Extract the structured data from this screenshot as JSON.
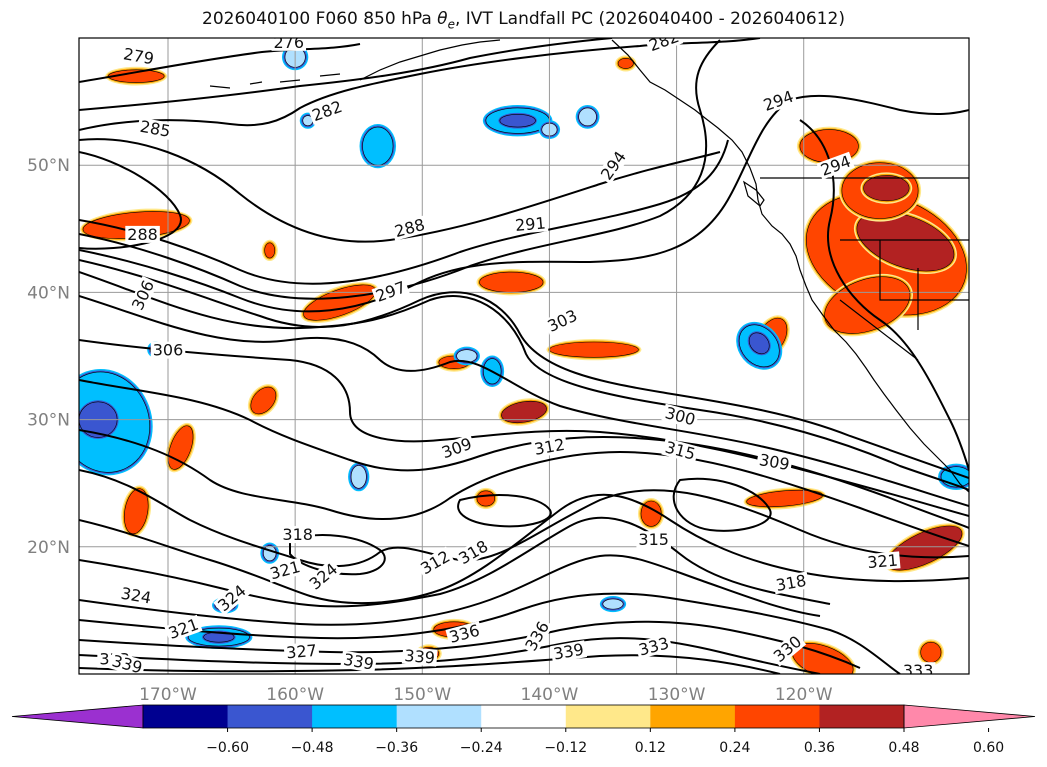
{
  "title": {
    "prefix": "2026040100 F060 850 hPa ",
    "theta": "θ",
    "theta_sub": "e",
    "suffix": ", IVT Landfall PC (2026040400 - 2026040612)"
  },
  "axes": {
    "lon_ticks": [
      "170°W",
      "160°W",
      "150°W",
      "140°W",
      "130°W",
      "120°W"
    ],
    "lat_ticks": [
      "50°N",
      "40°N",
      "30°N",
      "20°N"
    ],
    "lon_range": [
      -177,
      -107
    ],
    "lat_range": [
      10,
      60
    ],
    "grid": true,
    "projection": "PlateCarree"
  },
  "colorbar": {
    "tick_labels": [
      "−0.60",
      "−0.48",
      "−0.36",
      "−0.24",
      "−0.12",
      "0.12",
      "0.24",
      "0.36",
      "0.48",
      "0.60"
    ],
    "bounds": [
      -0.6,
      -0.48,
      -0.36,
      -0.24,
      -0.12,
      0.12,
      0.24,
      0.36,
      0.48,
      0.6
    ],
    "colors": [
      "#9b30d0",
      "#000090",
      "#3a56d0",
      "#00bfff",
      "#b0e0ff",
      "#ffffff",
      "#ffe88a",
      "#ffa500",
      "#ff4500",
      "#b22222",
      "#ff88aa"
    ],
    "extend": "both"
  },
  "contour_labels": [
    {
      "value": "279",
      "lon": -172.3,
      "lat": 58.6,
      "angle": 10
    },
    {
      "value": "276",
      "lon": -160.5,
      "lat": 59.7,
      "angle": 0
    },
    {
      "value": "282",
      "lon": -157.5,
      "lat": 54.3,
      "angle": -20
    },
    {
      "value": "285",
      "lon": -171.0,
      "lat": 52.9,
      "angle": 10
    },
    {
      "value": "288",
      "lon": -172.0,
      "lat": 44.6,
      "angle": 0
    },
    {
      "value": "288",
      "lon": -151.0,
      "lat": 45.1,
      "angle": -15
    },
    {
      "value": "291",
      "lon": -141.5,
      "lat": 45.4,
      "angle": -5
    },
    {
      "value": "297",
      "lon": -152.5,
      "lat": 40.1,
      "angle": -20
    },
    {
      "value": "303",
      "lon": -139.0,
      "lat": 37.8,
      "angle": -25
    },
    {
      "value": "294",
      "lon": -135.0,
      "lat": 50.0,
      "angle": -55
    },
    {
      "value": "294",
      "lon": -122.0,
      "lat": 55.1,
      "angle": -20
    },
    {
      "value": "294",
      "lon": -117.5,
      "lat": 50.0,
      "angle": -20
    },
    {
      "value": "306",
      "lon": -172.0,
      "lat": 39.8,
      "angle": -65
    },
    {
      "value": "306",
      "lon": -170.0,
      "lat": 35.5,
      "angle": 0
    },
    {
      "value": "300",
      "lon": -129.7,
      "lat": 30.3,
      "angle": 15
    },
    {
      "value": "309",
      "lon": -147.3,
      "lat": 27.8,
      "angle": -20
    },
    {
      "value": "312",
      "lon": -140.0,
      "lat": 27.9,
      "angle": -10
    },
    {
      "value": "315",
      "lon": -129.7,
      "lat": 27.6,
      "angle": 15
    },
    {
      "value": "309",
      "lon": -122.3,
      "lat": 26.7,
      "angle": 10
    },
    {
      "value": "318",
      "lon": -159.8,
      "lat": 21.0,
      "angle": 0
    },
    {
      "value": "315",
      "lon": -131.8,
      "lat": 20.6,
      "angle": 0
    },
    {
      "value": "321",
      "lon": -160.8,
      "lat": 18.2,
      "angle": -15
    },
    {
      "value": "324",
      "lon": -157.8,
      "lat": 17.7,
      "angle": -40
    },
    {
      "value": "324",
      "lon": -172.5,
      "lat": 16.2,
      "angle": 10
    },
    {
      "value": "324",
      "lon": -165.0,
      "lat": 16.0,
      "angle": -40
    },
    {
      "value": "312",
      "lon": -149.0,
      "lat": 18.8,
      "angle": -30
    },
    {
      "value": "318",
      "lon": -146.0,
      "lat": 19.6,
      "angle": -30
    },
    {
      "value": "318",
      "lon": -121.0,
      "lat": 17.2,
      "angle": -10
    },
    {
      "value": "321",
      "lon": -113.8,
      "lat": 18.9,
      "angle": -5
    },
    {
      "value": "321",
      "lon": -168.8,
      "lat": 13.6,
      "angle": -20
    },
    {
      "value": "336",
      "lon": -146.7,
      "lat": 13.2,
      "angle": -15
    },
    {
      "value": "336",
      "lon": -141.0,
      "lat": 13.0,
      "angle": -60
    },
    {
      "value": "333",
      "lon": -131.8,
      "lat": 12.2,
      "angle": -15
    },
    {
      "value": "333",
      "lon": -174.2,
      "lat": 11.2,
      "angle": 0
    },
    {
      "value": "327",
      "lon": -159.5,
      "lat": 11.8,
      "angle": -5
    },
    {
      "value": "330",
      "lon": -121.3,
      "lat": 12.0,
      "angle": -40
    },
    {
      "value": "339",
      "lon": -173.2,
      "lat": 10.8,
      "angle": 15
    },
    {
      "value": "339",
      "lon": -155.0,
      "lat": 11.0,
      "angle": 10
    },
    {
      "value": "339",
      "lon": -150.2,
      "lat": 11.4,
      "angle": 5
    },
    {
      "value": "339",
      "lon": -138.5,
      "lat": 11.8,
      "angle": -10
    },
    {
      "value": "333",
      "lon": -111.0,
      "lat": 10.3,
      "angle": 0
    },
    {
      "value": "282",
      "lon": -131.0,
      "lat": 59.8,
      "angle": -20
    }
  ],
  "shaded_regions": [
    {
      "level": 0.36,
      "lon": -113.5,
      "lat": 43.0,
      "rx": 6.5,
      "ry": 4.5,
      "angle": 20
    },
    {
      "level": 0.48,
      "lon": -112.0,
      "lat": 44.0,
      "rx": 4.0,
      "ry": 2.0,
      "angle": 20
    },
    {
      "level": 0.36,
      "lon": -114.0,
      "lat": 48.0,
      "rx": 3.0,
      "ry": 2.2,
      "angle": 0
    },
    {
      "level": 0.48,
      "lon": -113.5,
      "lat": 48.2,
      "rx": 1.8,
      "ry": 1.0,
      "angle": 0
    },
    {
      "level": 0.36,
      "lon": -115.0,
      "lat": 39.0,
      "rx": 3.5,
      "ry": 2.0,
      "angle": -20
    },
    {
      "level": 0.36,
      "lon": -122.5,
      "lat": 36.5,
      "rx": 1.0,
      "ry": 1.6,
      "angle": 30
    },
    {
      "level": 0.36,
      "lon": -118.0,
      "lat": 51.5,
      "rx": 2.3,
      "ry": 1.3,
      "angle": 0
    },
    {
      "level": 0.36,
      "lon": -172.5,
      "lat": 45.3,
      "rx": 4.2,
      "ry": 1.0,
      "angle": -5
    },
    {
      "level": 0.36,
      "lon": -172.5,
      "lat": 57.0,
      "rx": 2.2,
      "ry": 0.5,
      "angle": 0
    },
    {
      "level": 0.36,
      "lon": -156.5,
      "lat": 39.2,
      "rx": 3.0,
      "ry": 1.0,
      "angle": -20
    },
    {
      "level": 0.36,
      "lon": -143.0,
      "lat": 40.8,
      "rx": 2.5,
      "ry": 0.8,
      "angle": 0
    },
    {
      "level": 0.36,
      "lon": -136.5,
      "lat": 35.5,
      "rx": 3.5,
      "ry": 0.6,
      "angle": 0
    },
    {
      "level": 0.48,
      "lon": -142.0,
      "lat": 30.6,
      "rx": 1.8,
      "ry": 0.8,
      "angle": -10
    },
    {
      "level": 0.36,
      "lon": -147.5,
      "lat": 34.5,
      "rx": 1.2,
      "ry": 0.5,
      "angle": 0
    },
    {
      "level": 0.36,
      "lon": -162.0,
      "lat": 43.3,
      "rx": 0.4,
      "ry": 0.6,
      "angle": 0
    },
    {
      "level": 0.36,
      "lon": -172.5,
      "lat": 22.8,
      "rx": 0.9,
      "ry": 1.8,
      "angle": 10
    },
    {
      "level": 0.36,
      "lon": -169.0,
      "lat": 27.8,
      "rx": 0.8,
      "ry": 1.8,
      "angle": 20
    },
    {
      "level": 0.36,
      "lon": -162.5,
      "lat": 31.5,
      "rx": 0.8,
      "ry": 1.2,
      "angle": 40
    },
    {
      "level": 0.36,
      "lon": -145.0,
      "lat": 23.8,
      "rx": 0.7,
      "ry": 0.6,
      "angle": 0
    },
    {
      "level": 0.36,
      "lon": -132.0,
      "lat": 22.6,
      "rx": 0.8,
      "ry": 1.0,
      "angle": 0
    },
    {
      "level": 0.36,
      "lon": -121.5,
      "lat": 23.8,
      "rx": 3.0,
      "ry": 0.6,
      "angle": -5
    },
    {
      "level": 0.48,
      "lon": -110.5,
      "lat": 19.9,
      "rx": 3.2,
      "ry": 1.2,
      "angle": -25
    },
    {
      "level": 0.36,
      "lon": -147.5,
      "lat": 13.5,
      "rx": 1.6,
      "ry": 0.6,
      "angle": 0
    },
    {
      "level": 0.36,
      "lon": -149.5,
      "lat": 11.6,
      "rx": 0.8,
      "ry": 0.5,
      "angle": 0
    },
    {
      "level": 0.36,
      "lon": -118.5,
      "lat": 11.0,
      "rx": 2.5,
      "ry": 1.2,
      "angle": 20
    },
    {
      "level": 0.36,
      "lon": -110.0,
      "lat": 11.7,
      "rx": 0.8,
      "ry": 0.8,
      "angle": 0
    },
    {
      "level": 0.36,
      "lon": -134.0,
      "lat": 58.0,
      "rx": 0.6,
      "ry": 0.4,
      "angle": 0
    },
    {
      "level": -0.36,
      "lon": -175.0,
      "lat": 29.8,
      "rx": 3.5,
      "ry": 4.0,
      "angle": -20
    },
    {
      "level": -0.48,
      "lon": -175.5,
      "lat": 30.0,
      "rx": 1.5,
      "ry": 1.4,
      "angle": 0
    },
    {
      "level": -0.36,
      "lon": -142.5,
      "lat": 53.5,
      "rx": 2.5,
      "ry": 1.0,
      "angle": 0
    },
    {
      "level": -0.48,
      "lon": -142.5,
      "lat": 53.5,
      "rx": 1.4,
      "ry": 0.5,
      "angle": 0
    },
    {
      "level": -0.36,
      "lon": -153.5,
      "lat": 51.5,
      "rx": 1.2,
      "ry": 1.5,
      "angle": 0
    },
    {
      "level": -0.36,
      "lon": -166.0,
      "lat": 12.9,
      "rx": 2.4,
      "ry": 0.7,
      "angle": 0
    },
    {
      "level": -0.48,
      "lon": -166.0,
      "lat": 12.9,
      "rx": 1.2,
      "ry": 0.4,
      "angle": 0
    },
    {
      "level": -0.36,
      "lon": -123.5,
      "lat": 35.8,
      "rx": 1.4,
      "ry": 1.8,
      "angle": -40
    },
    {
      "level": -0.48,
      "lon": -123.5,
      "lat": 36.0,
      "rx": 0.7,
      "ry": 0.9,
      "angle": -40
    },
    {
      "level": -0.36,
      "lon": -144.5,
      "lat": 33.8,
      "rx": 0.7,
      "ry": 1.0,
      "angle": 0
    },
    {
      "level": -0.36,
      "lon": -108.0,
      "lat": 25.5,
      "rx": 1.2,
      "ry": 0.8,
      "angle": 0
    },
    {
      "level": -0.24,
      "lon": -160.0,
      "lat": 58.5,
      "rx": 0.8,
      "ry": 0.8,
      "angle": 0
    },
    {
      "level": -0.24,
      "lon": -137.0,
      "lat": 53.8,
      "rx": 0.7,
      "ry": 0.7,
      "angle": 0
    },
    {
      "level": -0.24,
      "lon": -146.5,
      "lat": 35.0,
      "rx": 0.8,
      "ry": 0.5,
      "angle": 0
    },
    {
      "level": -0.24,
      "lon": -171.0,
      "lat": 35.5,
      "rx": 0.4,
      "ry": 0.4,
      "angle": 0
    },
    {
      "level": -0.24,
      "lon": -155.0,
      "lat": 25.5,
      "rx": 0.6,
      "ry": 0.9,
      "angle": 0
    },
    {
      "level": -0.24,
      "lon": -162.0,
      "lat": 19.5,
      "rx": 0.5,
      "ry": 0.6,
      "angle": 0
    },
    {
      "level": -0.24,
      "lon": -165.5,
      "lat": 15.4,
      "rx": 0.8,
      "ry": 0.4,
      "angle": 0
    },
    {
      "level": -0.24,
      "lon": -140.0,
      "lat": 52.8,
      "rx": 0.6,
      "ry": 0.5,
      "angle": 0
    },
    {
      "level": -0.24,
      "lon": -135.0,
      "lat": 15.5,
      "rx": 0.8,
      "ry": 0.4,
      "angle": 0
    },
    {
      "level": -0.24,
      "lon": -159.0,
      "lat": 53.5,
      "rx": 0.4,
      "ry": 0.4,
      "angle": 0
    }
  ]
}
